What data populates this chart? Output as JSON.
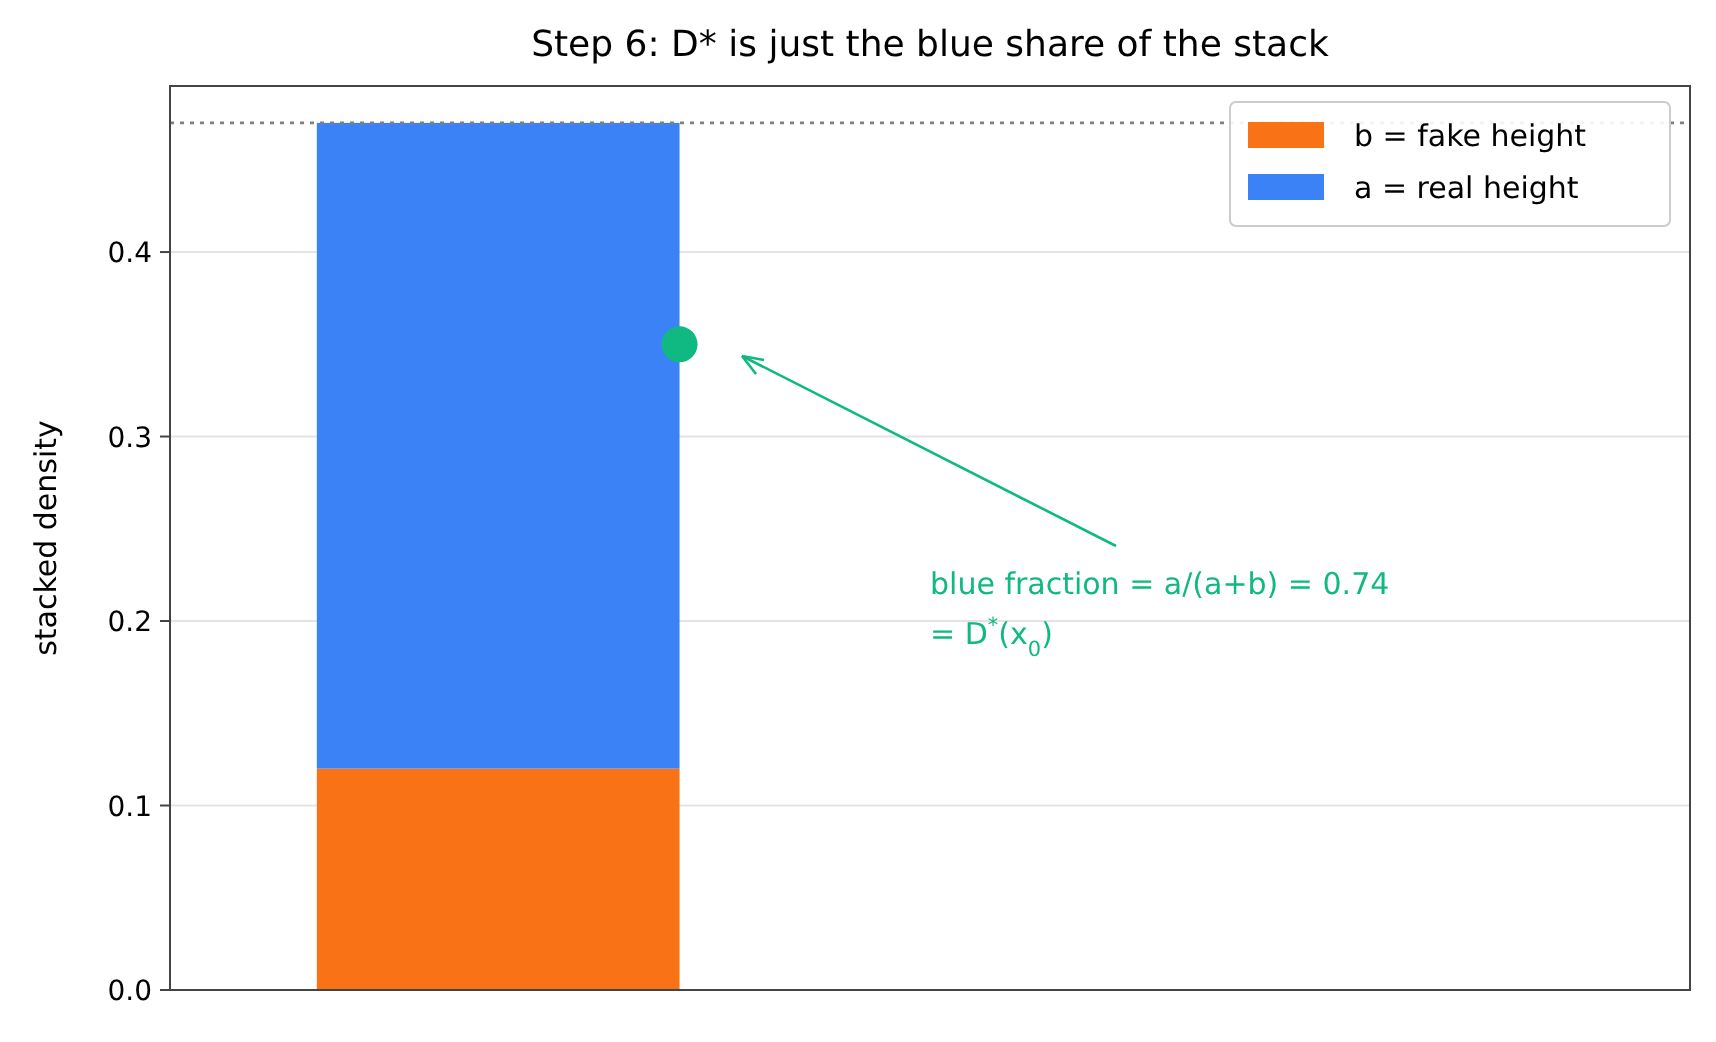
{
  "chart_data": {
    "type": "bar",
    "title": "Step 6: D* is just the blue share of the stack",
    "ylabel": "stacked density",
    "categories": [
      null,
      null
    ],
    "stacked": true,
    "series": [
      {
        "name": "b = fake height",
        "color": "#f97316",
        "values": [
          0.12,
          null
        ]
      },
      {
        "name": "a = real height",
        "color": "#3b82f6",
        "values": [
          0.35,
          null
        ]
      }
    ],
    "ylim": [
      0,
      0.49
    ],
    "yticks": [
      {
        "value": 0,
        "label": "0.0"
      },
      {
        "value": 0.1,
        "label": "0.1"
      },
      {
        "value": 0.2,
        "label": "0.2"
      },
      {
        "value": 0.3,
        "label": "0.3"
      },
      {
        "value": 0.4,
        "label": "0.4"
      }
    ],
    "grid": "y",
    "legend": "top right",
    "ref_lines": [
      {
        "axis": "y",
        "value": 0.47,
        "line_style": "dotted",
        "color": "#808080"
      }
    ],
    "annotations": [
      "blue fraction = a/(a+b) = 0.74\n= D$^{*}$(x$_{0}$)"
    ]
  }
}
